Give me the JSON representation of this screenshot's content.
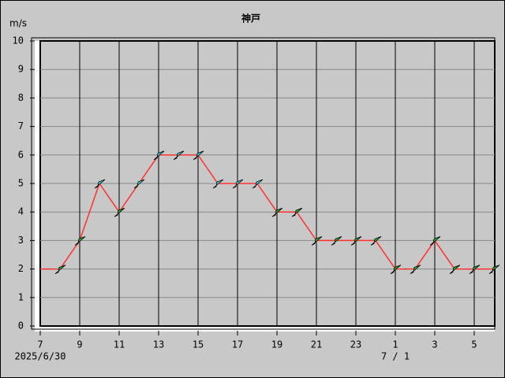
{
  "chart_data": {
    "type": "line",
    "title": "神戸",
    "y_label": "m/s",
    "categories": [
      "7",
      null,
      "9",
      null,
      "11",
      null,
      "13",
      null,
      "15",
      null,
      "17",
      null,
      "19",
      null,
      "21",
      null,
      "23",
      null,
      "1",
      null,
      "3",
      null,
      "5",
      null
    ],
    "dates": [
      {
        "index": 0,
        "label": "2025/6/30"
      },
      {
        "index": 18,
        "label": "7 / 1"
      }
    ],
    "values": [
      2,
      2,
      3,
      5,
      4,
      5,
      6,
      6,
      6,
      5,
      5,
      5,
      4,
      4,
      3,
      3,
      3,
      3,
      2,
      2,
      3,
      2,
      2,
      2
    ],
    "color": "#ff3030",
    "marker_colors": [
      null,
      "#20c020",
      "#20c020",
      "#30d8e8",
      "#20c020",
      "#30d8e8",
      "#30d8e8",
      "#30d8e8",
      "#30d8e8",
      "#30d8e8",
      "#30d8e8",
      "#30d8e8",
      "#20c020",
      "#20c020",
      "#20c020",
      "#20c020",
      "#20c020",
      "#20c020",
      "#20c020",
      "#20c020",
      "#20c020",
      "#20c020",
      "#20c020",
      "#20c020"
    ],
    "ylim": [
      0,
      10
    ],
    "yticks": [
      0,
      1,
      2,
      3,
      4,
      5,
      6,
      7,
      8,
      9,
      10
    ],
    "grid": true
  }
}
